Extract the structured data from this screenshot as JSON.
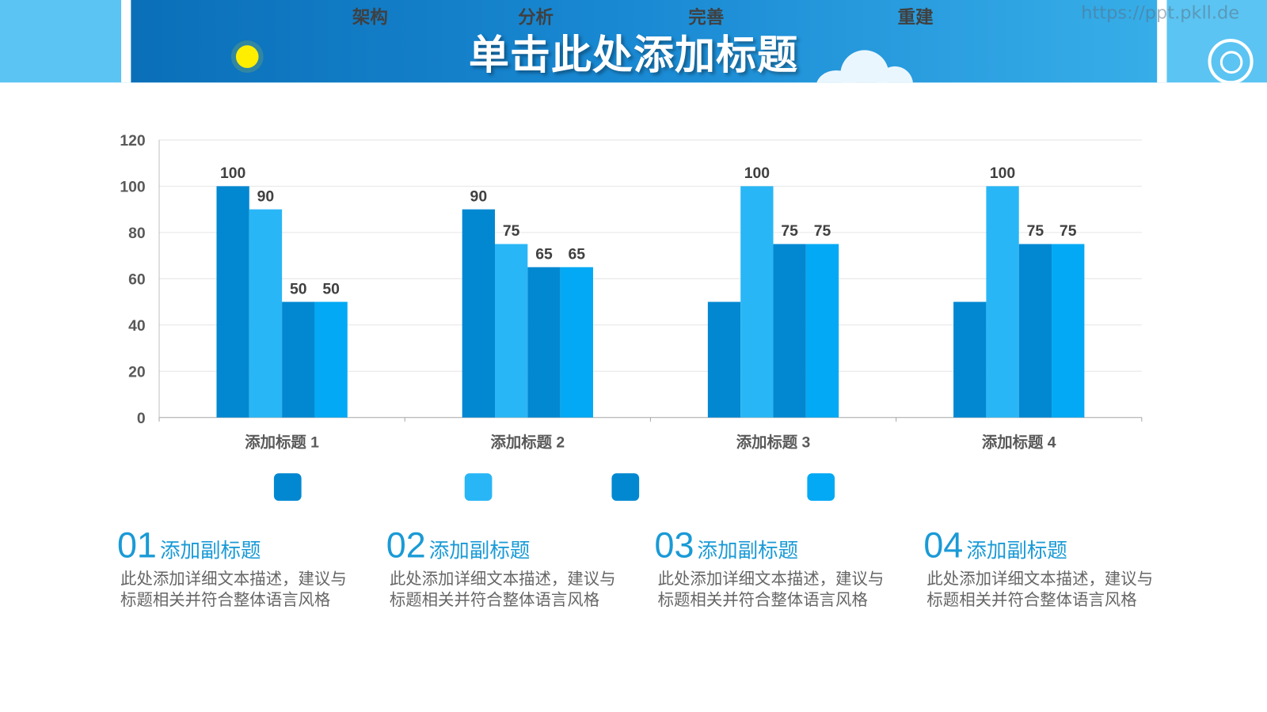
{
  "header": {
    "title": "单击此处添加标题",
    "watermark": "https://ppt.pkll.de"
  },
  "chart_data": {
    "type": "bar",
    "categories": [
      "添加标题 1",
      "添加标题 2",
      "添加标题 3",
      "添加标题 4"
    ],
    "series": [
      {
        "name": "架构",
        "values": [
          100,
          90,
          50,
          50
        ],
        "color": "#0288d1"
      },
      {
        "name": "分析",
        "values": [
          90,
          75,
          100,
          100
        ],
        "color": "#29b6f6"
      },
      {
        "name": "完善",
        "values": [
          50,
          65,
          75,
          75
        ],
        "color": "#0288d1"
      },
      {
        "name": "重建",
        "values": [
          50,
          65,
          75,
          75
        ],
        "color": "#03a9f4"
      }
    ],
    "data_labels": [
      [
        100,
        90,
        50,
        50
      ],
      [
        90,
        75,
        65,
        65
      ],
      [
        null,
        100,
        75,
        75
      ],
      [
        null,
        100,
        75,
        75
      ]
    ],
    "ylim": [
      0,
      120
    ],
    "yticks": [
      0,
      20,
      40,
      60,
      80,
      100,
      120
    ],
    "grid": true,
    "legend": "bottom"
  },
  "columns": [
    {
      "num": "01",
      "subtitle": "添加副标题",
      "line1": "此处添加详细文本描述，建议与",
      "line2": "标题相关并符合整体语言风格"
    },
    {
      "num": "02",
      "subtitle": "添加副标题",
      "line1": "此处添加详细文本描述，建议与",
      "line2": "标题相关并符合整体语言风格"
    },
    {
      "num": "03",
      "subtitle": "添加副标题",
      "line1": "此处添加详细文本描述，建议与",
      "line2": "标题相关并符合整体语言风格"
    },
    {
      "num": "04",
      "subtitle": "添加副标题",
      "line1": "此处添加详细文本描述，建议与",
      "line2": "标题相关并符合整体语言风格"
    }
  ]
}
